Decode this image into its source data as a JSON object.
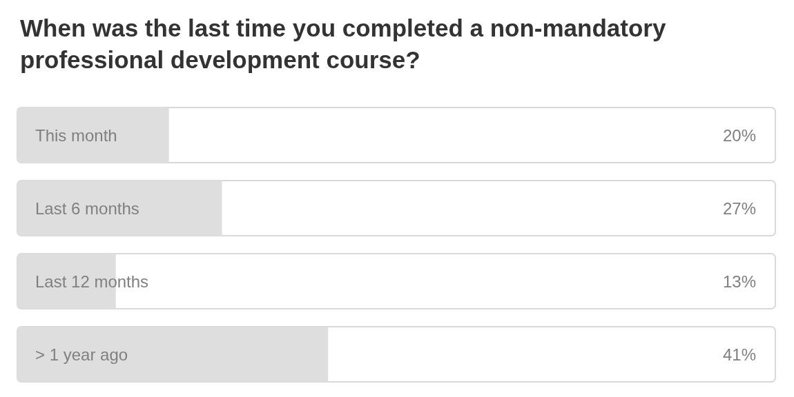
{
  "chart_data": {
    "type": "bar",
    "orientation": "horizontal",
    "title": "When was the last time you completed a non-mandatory professional development course?",
    "categories": [
      "This month",
      "Last 6 months",
      "Last 12 months",
      "> 1 year ago"
    ],
    "values": [
      20,
      27,
      13,
      41
    ],
    "value_labels": [
      "20%",
      "27%",
      "13%",
      "41%"
    ],
    "color": "#dedede",
    "xlim": [
      0,
      100
    ]
  }
}
